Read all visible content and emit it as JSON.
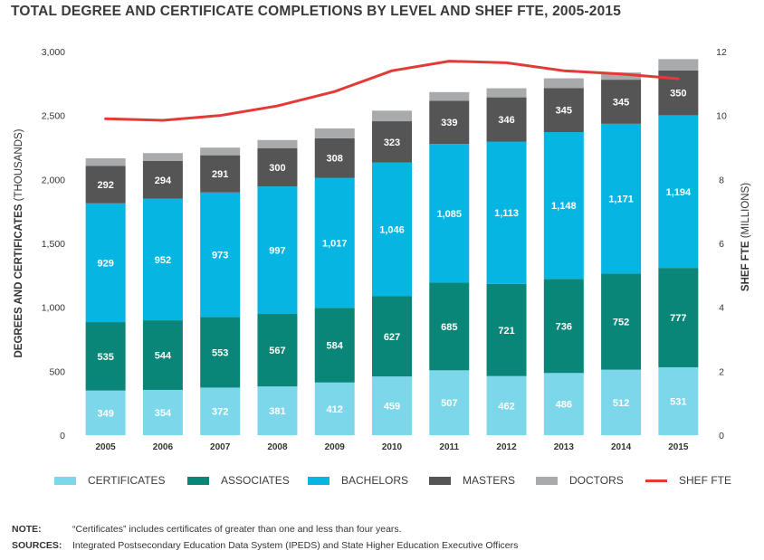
{
  "title": "TOTAL DEGREE AND CERTIFICATE COMPLETIONS BY LEVEL AND SHEF FTE, 2005-2015",
  "colors": {
    "certificates": "#7dd7ea",
    "associates": "#098678",
    "bachelors": "#06b5e1",
    "masters": "#555556",
    "doctors": "#a9aaac",
    "shef_fte": "#e23a36",
    "axis_text": "#333333"
  },
  "chart_data": {
    "type": "bar",
    "stacked": true,
    "categories": [
      "2005",
      "2006",
      "2007",
      "2008",
      "2009",
      "2010",
      "2011",
      "2012",
      "2013",
      "2014",
      "2015"
    ],
    "series": [
      {
        "name": "CERTIFICATES",
        "key": "certificates",
        "values": [
          349,
          354,
          372,
          381,
          412,
          459,
          507,
          462,
          486,
          512,
          531
        ]
      },
      {
        "name": "ASSOCIATES",
        "key": "associates",
        "values": [
          535,
          544,
          553,
          567,
          584,
          627,
          685,
          721,
          736,
          752,
          777
        ]
      },
      {
        "name": "BACHELORS",
        "key": "bachelors",
        "values": [
          929,
          952,
          973,
          997,
          1017,
          1046,
          1085,
          1113,
          1148,
          1171,
          1194
        ]
      },
      {
        "name": "MASTERS",
        "key": "masters",
        "values": [
          292,
          294,
          291,
          300,
          308,
          323,
          339,
          346,
          345,
          345,
          350
        ]
      },
      {
        "name": "DOCTORS",
        "key": "doctors",
        "values": [
          60,
          62,
          60,
          63,
          78,
          83,
          67,
          71,
          76,
          56,
          89
        ]
      }
    ],
    "line_series": {
      "name": "SHEF FTE",
      "axis": "right",
      "values": [
        9.9,
        9.85,
        10.0,
        10.3,
        10.75,
        11.4,
        11.7,
        11.65,
        11.4,
        11.3,
        11.15
      ]
    },
    "data_labels": {
      "certificates": [
        "349",
        "354",
        "372",
        "381",
        "412",
        "459",
        "507",
        "462",
        "486",
        "512",
        "531"
      ],
      "associates": [
        "535",
        "544",
        "553",
        "567",
        "584",
        "627",
        "685",
        "721",
        "736",
        "752",
        "777"
      ],
      "bachelors": [
        "929",
        "952",
        "973",
        "997",
        "1,017",
        "1,046",
        "1,085",
        "1,113",
        "1,148",
        "1,171",
        "1,194"
      ],
      "masters": [
        "292",
        "294",
        "291",
        "300",
        "308",
        "323",
        "339",
        "346",
        "345",
        "345",
        "350"
      ]
    },
    "ylabel_bold": "DEGREES AND CERTIFICATES",
    "ylabel_light": " (THOUSANDS)",
    "y2label_bold": "SHEF FTE",
    "y2label_light": " (MILLIONS)",
    "ylim": [
      0,
      3000
    ],
    "y2lim": [
      0,
      12
    ],
    "yticks": [
      0,
      500,
      1000,
      1500,
      2000,
      2500,
      3000
    ],
    "ytick_labels": [
      "0",
      "500",
      "1,000",
      "1,500",
      "2,000",
      "2,500",
      "3,000"
    ],
    "y2ticks": [
      0,
      2,
      4,
      6,
      8,
      10,
      12
    ],
    "y2tick_labels": [
      "0",
      "2",
      "4",
      "6",
      "8",
      "10",
      "12"
    ],
    "grid": false,
    "legend_position": "bottom"
  },
  "legend": [
    {
      "label": "CERTIFICATES",
      "color_key": "certificates",
      "kind": "swatch"
    },
    {
      "label": "ASSOCIATES",
      "color_key": "associates",
      "kind": "swatch"
    },
    {
      "label": "BACHELORS",
      "color_key": "bachelors",
      "kind": "swatch"
    },
    {
      "label": "MASTERS",
      "color_key": "masters",
      "kind": "swatch"
    },
    {
      "label": "DOCTORS",
      "color_key": "doctors",
      "kind": "swatch"
    },
    {
      "label": "SHEF FTE",
      "color_key": "shef_fte",
      "kind": "line"
    }
  ],
  "note": {
    "label": "NOTE:",
    "text": "“Certificates” includes certificates of greater than one and less than four years."
  },
  "sources": {
    "label": "SOURCES:",
    "text": "Integrated Postsecondary Education Data System (IPEDS) and State Higher Education Executive Officers"
  }
}
